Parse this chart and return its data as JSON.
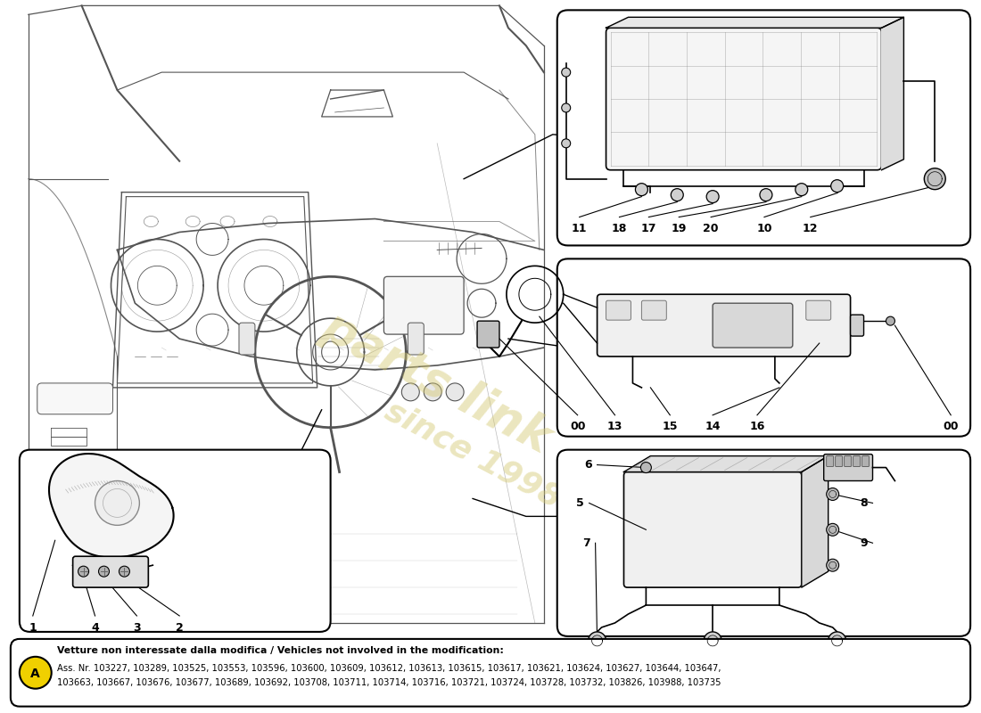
{
  "bg_color": "#ffffff",
  "fig_width": 11.0,
  "fig_height": 8.0,
  "dpi": 100,
  "bottom_box": {
    "line1": "Vetture non interessate dalla modifica / Vehicles not involved in the modification:",
    "line2": "Ass. Nr. 103227, 103289, 103525, 103553, 103596, 103600, 103609, 103612, 103613, 103615, 103617, 103621, 103624, 103627, 103644, 103647,",
    "line3": "103663, 103667, 103676, 103677, 103689, 103692, 103708, 103711, 103714, 103716, 103721, 103724, 103728, 103732, 103826, 103988, 103735",
    "circle_color": "#f0d000",
    "circle_text": "A"
  },
  "watermark_color": "#d4c870",
  "watermark_alpha": 0.45
}
